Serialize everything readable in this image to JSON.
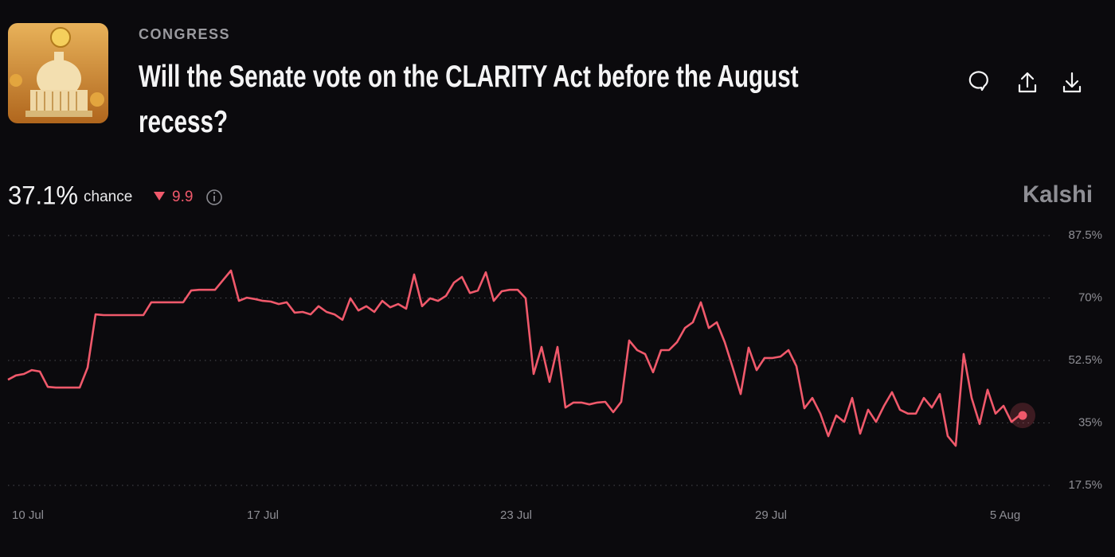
{
  "header": {
    "category": "CONGRESS",
    "title": "Will the Senate vote on the CLARITY Act before the August recess?"
  },
  "summary": {
    "chance": "37.1%",
    "chance_word": "chance",
    "change": "9.9",
    "brand": "Kalshi"
  },
  "chart_data": {
    "type": "line",
    "color": "#f0596b",
    "values": [
      47.1,
      48.3,
      48.7,
      49.8,
      49.4,
      45.1,
      44.9,
      44.9,
      44.9,
      44.9,
      50.5,
      65.4,
      65.2,
      65.2,
      65.2,
      65.2,
      65.2,
      65.2,
      68.8,
      68.8,
      68.8,
      68.8,
      68.8,
      72.1,
      72.3,
      72.3,
      72.3,
      75.0,
      77.7,
      69.2,
      70.1,
      69.7,
      69.2,
      69.0,
      68.3,
      68.8,
      65.9,
      66.1,
      65.4,
      67.7,
      66.1,
      65.4,
      63.9,
      69.9,
      66.5,
      67.7,
      66.1,
      69.2,
      67.4,
      68.3,
      67.0,
      76.6,
      67.7,
      69.9,
      69.2,
      70.6,
      74.3,
      75.9,
      71.4,
      72.1,
      77.2,
      69.2,
      71.9,
      72.3,
      72.3,
      69.9,
      48.7,
      56.3,
      46.5,
      56.3,
      39.3,
      40.7,
      40.7,
      40.2,
      40.7,
      40.9,
      38.0,
      40.9,
      58.1,
      55.4,
      54.3,
      49.2,
      55.4,
      55.4,
      57.6,
      61.6,
      63.2,
      68.8,
      61.6,
      63.2,
      57.6,
      50.5,
      43.1,
      56.1,
      49.8,
      53.2,
      53.2,
      53.6,
      55.4,
      50.9,
      39.1,
      42.0,
      37.6,
      31.3,
      37.1,
      35.3,
      42.0,
      32.0,
      38.7,
      35.3,
      39.8,
      43.6,
      38.7,
      37.6,
      37.6,
      42.0,
      39.3,
      43.1,
      31.3,
      28.6,
      54.3,
      42.0,
      34.7,
      44.3,
      37.6,
      39.8,
      35.3,
      37.1
    ],
    "xlim": [
      0,
      127
    ],
    "xticks": [
      {
        "value": 2.5,
        "label": "10 Jul"
      },
      {
        "value": 32,
        "label": "17 Jul"
      },
      {
        "value": 63.8,
        "label": "23 Jul"
      },
      {
        "value": 95.8,
        "label": "29 Jul"
      },
      {
        "value": 125.2,
        "label": "5 Aug"
      }
    ],
    "ylim": [
      17.5,
      87.5
    ],
    "yticks": [
      {
        "value": 17.5,
        "label": "17.5%"
      },
      {
        "value": 35,
        "label": "35%"
      },
      {
        "value": 52.5,
        "label": "52.5%"
      },
      {
        "value": 70,
        "label": "70%"
      },
      {
        "value": 87.5,
        "label": "87.5%"
      }
    ],
    "grid": true
  }
}
